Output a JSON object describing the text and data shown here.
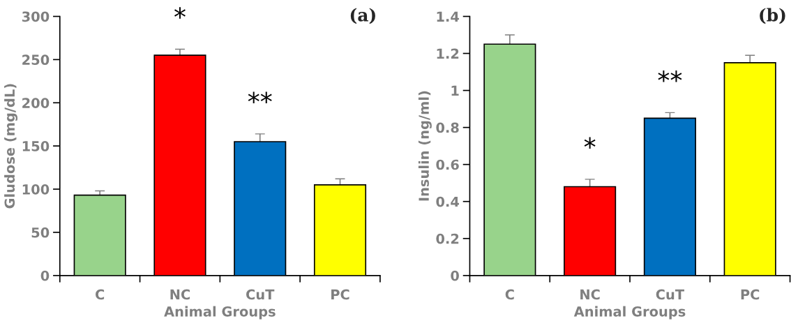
{
  "chart_data": [
    {
      "type": "bar",
      "title": "(a)",
      "xlabel": "Animal Groups",
      "ylabel": "Gludose (mg/dL)",
      "categories": [
        "C",
        "NC",
        "CuT",
        "PC"
      ],
      "values": [
        93,
        255,
        155,
        105
      ],
      "colors": [
        "#98d38b",
        "#ff0000",
        "#0070c0",
        "#ffff00"
      ],
      "errors": [
        5,
        7,
        9,
        7
      ],
      "ylim": [
        0,
        300
      ],
      "yticks": [
        0,
        50,
        100,
        150,
        200,
        250,
        300
      ],
      "grid": false,
      "legend": false,
      "annotations": [
        "*",
        "**"
      ]
    },
    {
      "type": "bar",
      "title": "(b)",
      "xlabel": "Animal Groups",
      "ylabel": "Insulin (ng/ml)",
      "categories": [
        "C",
        "NC",
        "CuT",
        "PC"
      ],
      "values": [
        1.25,
        0.48,
        0.85,
        1.15
      ],
      "colors": [
        "#98d38b",
        "#ff0000",
        "#0070c0",
        "#ffff00"
      ],
      "errors": [
        0.05,
        0.04,
        0.03,
        0.04
      ],
      "ylim": [
        0,
        1.4
      ],
      "yticks": [
        0,
        0.2,
        0.4,
        0.6,
        0.8,
        1,
        1.2,
        1.4
      ],
      "grid": false,
      "legend": false,
      "annotations": [
        "*",
        "**"
      ]
    }
  ]
}
